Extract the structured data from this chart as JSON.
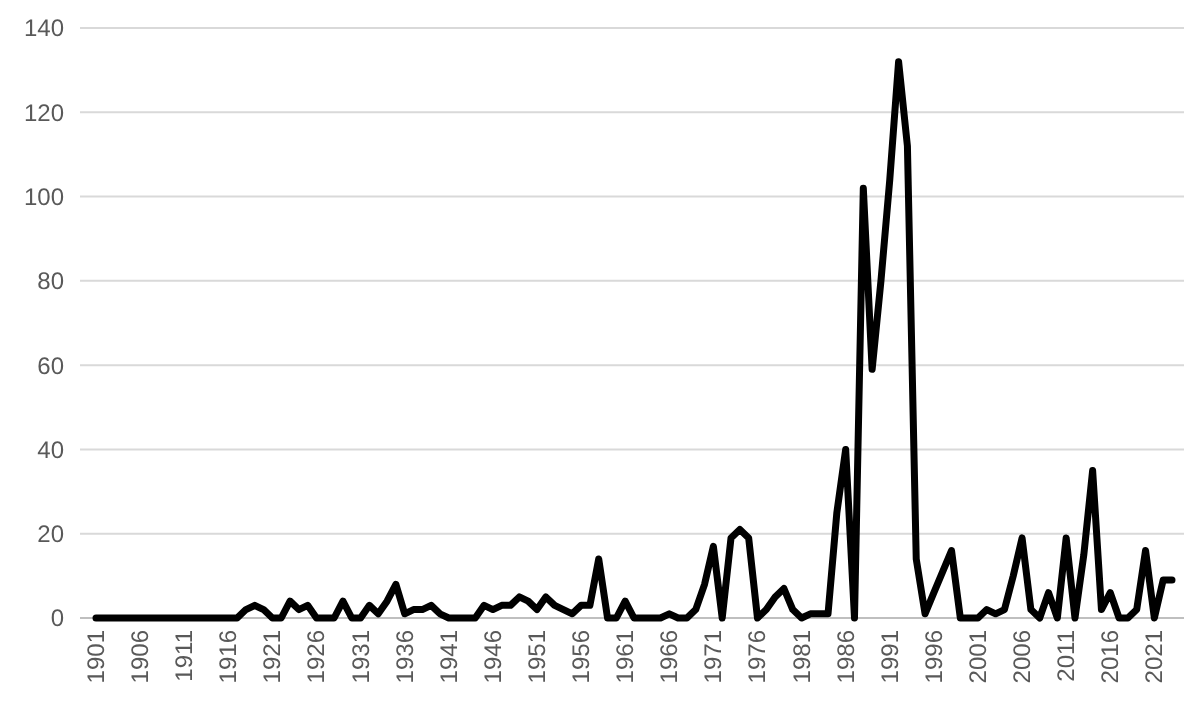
{
  "chart_data": {
    "type": "line",
    "categories": [
      "1901",
      null,
      null,
      null,
      null,
      "1906",
      null,
      null,
      null,
      null,
      "1911",
      null,
      null,
      null,
      null,
      "1916",
      null,
      null,
      null,
      null,
      "1921",
      null,
      null,
      null,
      null,
      "1926",
      null,
      null,
      null,
      null,
      "1931",
      null,
      null,
      null,
      null,
      "1936",
      null,
      null,
      null,
      null,
      "1941",
      null,
      null,
      null,
      null,
      "1946",
      null,
      null,
      null,
      null,
      "1951",
      null,
      null,
      null,
      null,
      "1956",
      null,
      null,
      null,
      null,
      "1961",
      null,
      null,
      null,
      null,
      "1966",
      null,
      null,
      null,
      null,
      "1971",
      null,
      null,
      null,
      null,
      "1976",
      null,
      null,
      null,
      null,
      "1981",
      null,
      null,
      null,
      null,
      "1986",
      null,
      null,
      null,
      null,
      "1991",
      null,
      null,
      null,
      null,
      "1996",
      null,
      null,
      null,
      null,
      "2001",
      null,
      null,
      null,
      null,
      "2006",
      null,
      null,
      null,
      null,
      "2011",
      null,
      null,
      null,
      null,
      "2016",
      null,
      null,
      null,
      null,
      "2021",
      null,
      null
    ],
    "series": [
      {
        "color": "#000000",
        "values": [
          0,
          0,
          0,
          0,
          0,
          0,
          0,
          0,
          0,
          0,
          0,
          0,
          0,
          0,
          0,
          0,
          0,
          2,
          3,
          2,
          0,
          0,
          4,
          2,
          3,
          0,
          0,
          0,
          4,
          0,
          0,
          3,
          1,
          4,
          8,
          1,
          2,
          2,
          3,
          1,
          0,
          0,
          0,
          0,
          3,
          2,
          3,
          3,
          5,
          4,
          2,
          5,
          3,
          2,
          1,
          3,
          3,
          14,
          0,
          0,
          4,
          0,
          0,
          0,
          0,
          1,
          0,
          0,
          2,
          8,
          17,
          0,
          19,
          21,
          19,
          0,
          2,
          5,
          7,
          2,
          0,
          1,
          1,
          1,
          25,
          40,
          0,
          102,
          59,
          80,
          104,
          132,
          112,
          14,
          1,
          6,
          11,
          16,
          0,
          0,
          0,
          2,
          1,
          2,
          10,
          19,
          2,
          0,
          6,
          0,
          19,
          0,
          15,
          35,
          2,
          6,
          0,
          0,
          2,
          16,
          0,
          9,
          9
        ]
      }
    ],
    "ylim": [
      0,
      140
    ],
    "yticks": [
      0,
      20,
      40,
      60,
      80,
      100,
      120,
      140
    ],
    "grid": "y",
    "marker": "none",
    "line_style": "solid"
  }
}
